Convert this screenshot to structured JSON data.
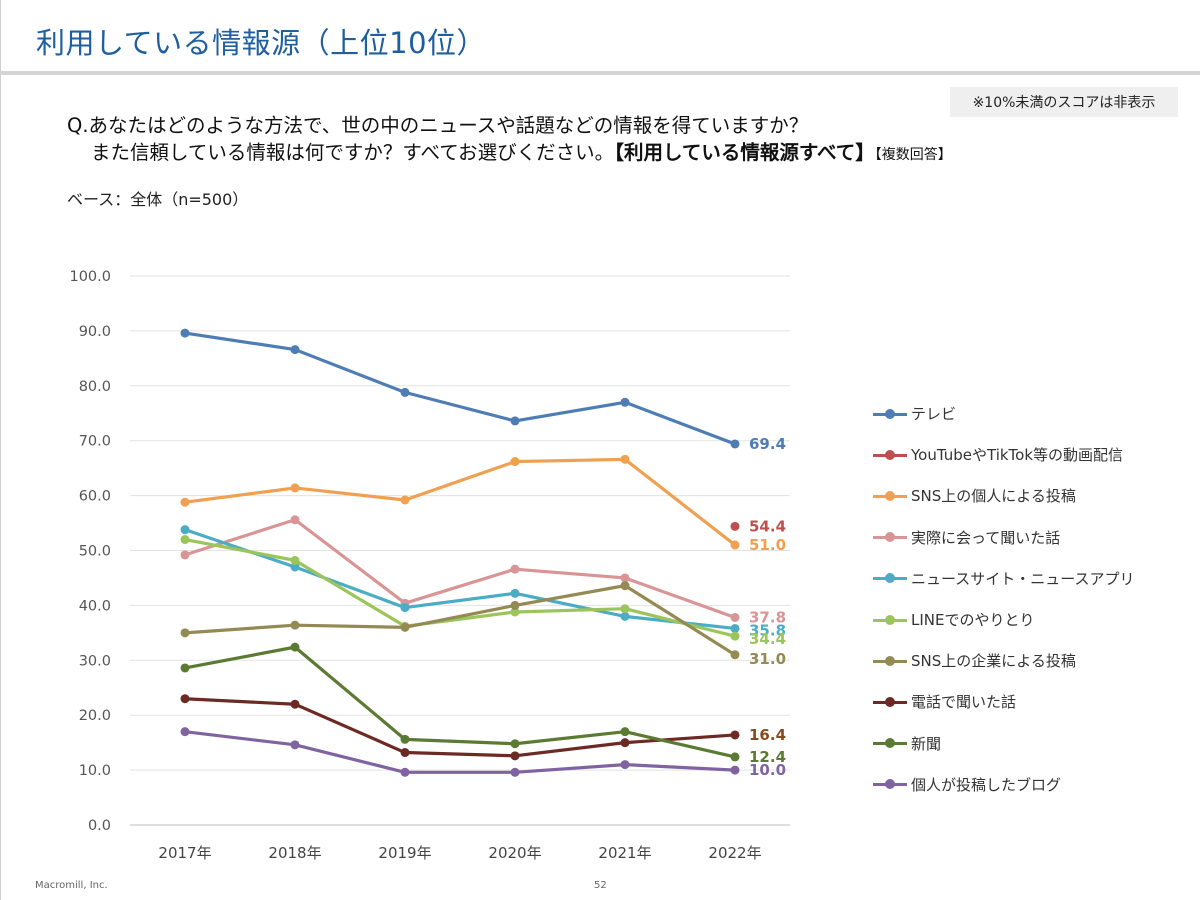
{
  "slide": {
    "title": "利用している情報源（上位10位）",
    "note": "※10%未満のスコアは非表示",
    "question_line1": "Q.あなたはどのような方法で、世の中のニュースや話題などの情報を得ていますか？",
    "question_line2_a": "また信頼している情報は何ですか？すべてお選びください。",
    "question_line2_b": "【利用している情報源すべて】",
    "question_line2_c": "【複数回答】",
    "base": "ベース：全体（n=500）",
    "footer_company": "Macromill, Inc.",
    "page_number": "52"
  },
  "chart_data": {
    "type": "line",
    "categories": [
      "2017年",
      "2018年",
      "2019年",
      "2020年",
      "2021年",
      "2022年"
    ],
    "ylim": [
      0,
      100
    ],
    "y_ticks": [
      "0.0",
      "10.0",
      "20.0",
      "30.0",
      "40.0",
      "50.0",
      "60.0",
      "70.0",
      "80.0",
      "90.0",
      "100.0"
    ],
    "grid": "horizontal",
    "legend_position": "right",
    "series": [
      {
        "name": "テレビ",
        "color": "#4e7db5",
        "values": [
          89.6,
          86.6,
          78.8,
          73.6,
          77.0,
          69.4
        ],
        "end_label": "69.4"
      },
      {
        "name": "YouTubeやTikTok等の動画配信",
        "color": "#bf4f4f",
        "values": [
          null,
          null,
          null,
          null,
          null,
          54.4
        ],
        "end_label": "54.4"
      },
      {
        "name": "SNS上の個人による投稿",
        "color": "#f0a050",
        "values": [
          58.8,
          61.4,
          59.2,
          66.2,
          66.6,
          51.0
        ],
        "end_label": "51.0"
      },
      {
        "name": "実際に会って聞いた話",
        "color": "#d99595",
        "values": [
          49.2,
          55.6,
          40.4,
          46.6,
          45.0,
          37.8
        ],
        "end_label": "37.8"
      },
      {
        "name": "ニュースサイト・ニュースアプリ",
        "color": "#4bacc6",
        "values": [
          53.8,
          47.0,
          39.6,
          42.2,
          38.0,
          35.8
        ],
        "end_label": "35.8"
      },
      {
        "name": "LINEでのやりとり",
        "color": "#9bc55a",
        "values": [
          52.0,
          48.2,
          36.2,
          38.8,
          39.4,
          34.4
        ],
        "end_label": "34.4"
      },
      {
        "name": "SNS上の企業による投稿",
        "color": "#948a54",
        "values": [
          35.0,
          36.4,
          36.0,
          40.0,
          43.6,
          31.0
        ],
        "end_label": "31.0"
      },
      {
        "name": "電話で聞いた話",
        "color": "#6d2a24",
        "values": [
          23.0,
          22.0,
          13.2,
          12.6,
          15.0,
          16.4
        ],
        "end_label": "16.4"
      },
      {
        "name": "新聞",
        "color": "#5b7a32",
        "values": [
          28.6,
          32.4,
          15.6,
          14.8,
          17.0,
          12.4
        ],
        "end_label": "12.4"
      },
      {
        "name": "個人が投稿したブログ",
        "color": "#8064a2",
        "values": [
          17.0,
          14.6,
          9.6,
          9.6,
          11.0,
          10.0
        ],
        "end_label": "10.0"
      }
    ],
    "end_label_colors": [
      "#4e7db5",
      "#bf4f4f",
      "#f0a050",
      "#d99595",
      "#4bacc6",
      "#9bc55a",
      "#948a54",
      "#8a4a1c",
      "#5b7a32",
      "#8064a2"
    ]
  }
}
